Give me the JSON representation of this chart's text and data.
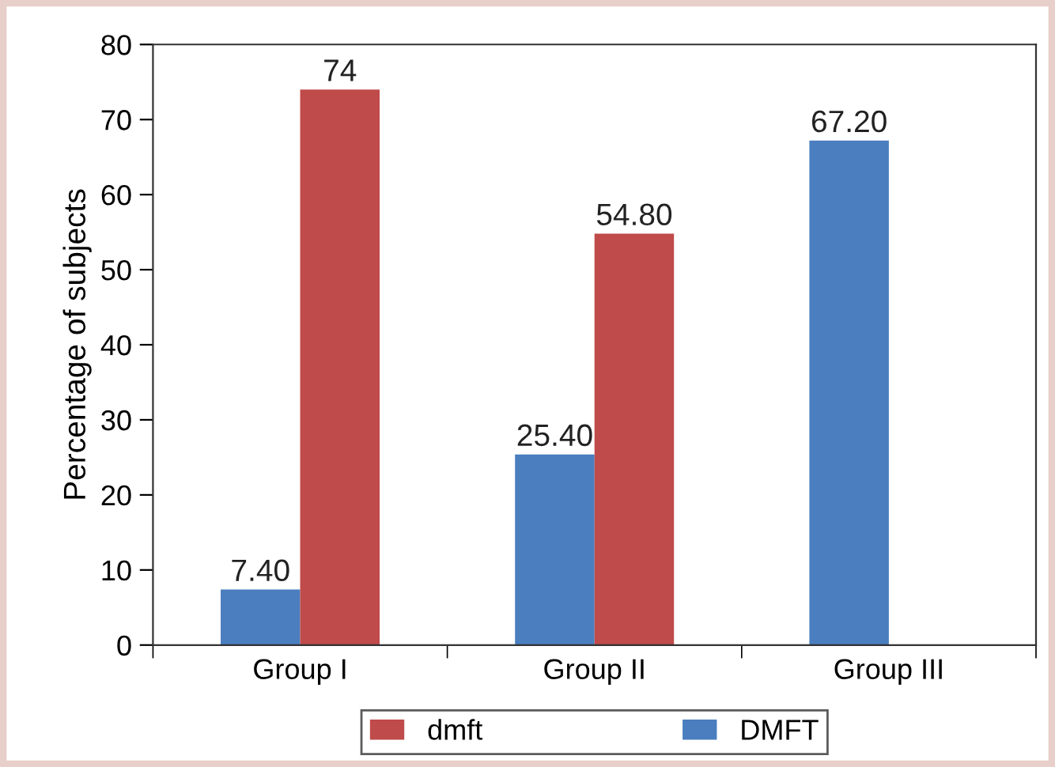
{
  "chart_data": {
    "type": "bar",
    "ylabel": "Percentage of subjects",
    "categories": [
      "Group I",
      "Group II",
      "Group III"
    ],
    "series": [
      {
        "name": "DMFT",
        "color": "#4a7ebf",
        "values": [
          7.4,
          25.4,
          67.2
        ],
        "value_labels": [
          "7.40",
          "25.40",
          "67.20"
        ]
      },
      {
        "name": "dmft",
        "color": "#bf4b4a",
        "values": [
          74,
          54.8,
          null
        ],
        "value_labels": [
          "74",
          "54.80",
          null
        ]
      }
    ],
    "ylim": [
      0,
      80
    ],
    "yticks": [
      0,
      10,
      20,
      30,
      40,
      50,
      60,
      70,
      80
    ],
    "grid": false,
    "legend": "bottom"
  }
}
